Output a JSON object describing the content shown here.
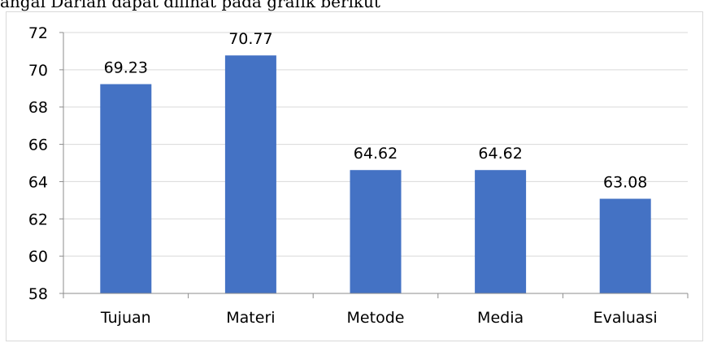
{
  "caption": "angai Darian dapat dilihat pada grafik berikut",
  "chart_data": {
    "type": "bar",
    "categories": [
      "Tujuan",
      "Materi",
      "Metode",
      "Media",
      "Evaluasi"
    ],
    "values": [
      69.23,
      70.77,
      64.62,
      64.62,
      63.08
    ],
    "data_labels": [
      "69.23",
      "70.77",
      "64.62",
      "64.62",
      "63.08"
    ],
    "ylim": [
      58,
      72
    ],
    "yticks": [
      58,
      60,
      62,
      64,
      66,
      68,
      70,
      72
    ],
    "title": "",
    "xlabel": "",
    "ylabel": "",
    "grid": true,
    "legend": "none",
    "bar_color": "#4472c4",
    "grid_color": "#d9d9d9"
  }
}
